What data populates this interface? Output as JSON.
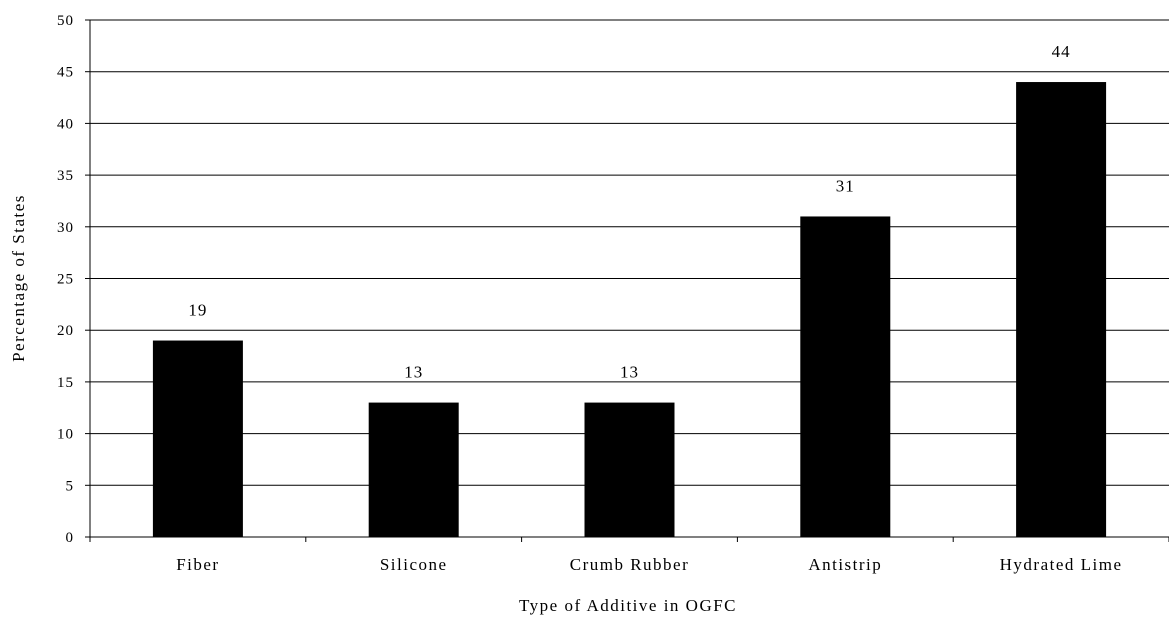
{
  "chart_data": {
    "type": "bar",
    "title": "",
    "xlabel": "Type of Additive in OGFC",
    "ylabel": "Percentage of States",
    "categories": [
      "Fiber",
      "Silicone",
      "Crumb Rubber",
      "Antistrip",
      "Hydrated Lime"
    ],
    "values": [
      19,
      13,
      13,
      31,
      44
    ],
    "data_labels": [
      "19",
      "13",
      "13",
      "31",
      "44"
    ],
    "ylim": [
      0,
      50
    ],
    "yticks": [
      "0",
      "5",
      "10",
      "15",
      "20",
      "25",
      "30",
      "35",
      "40",
      "45",
      "50"
    ],
    "grid": true,
    "legend": "none",
    "bar_color": "#000000",
    "grid_color": "#000000"
  }
}
